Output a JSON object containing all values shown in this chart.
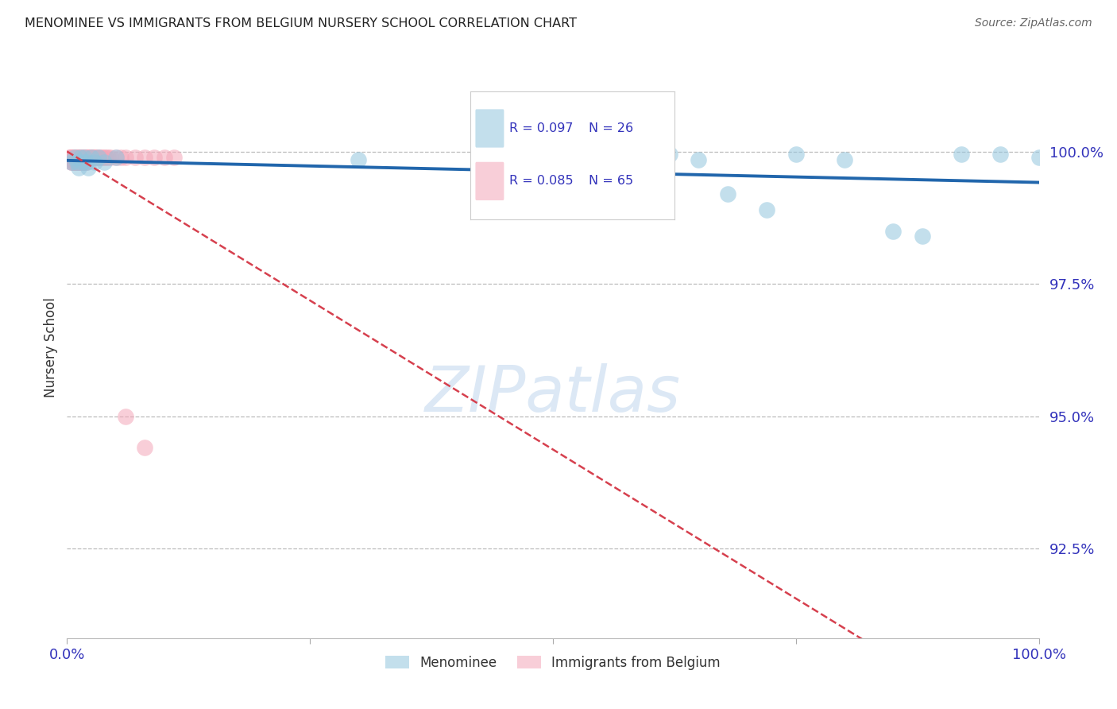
{
  "title": "MENOMINEE VS IMMIGRANTS FROM BELGIUM NURSERY SCHOOL CORRELATION CHART",
  "source": "Source: ZipAtlas.com",
  "ylabel": "Nursery School",
  "legend_blue_r": "0.097",
  "legend_blue_n": "26",
  "legend_pink_r": "0.085",
  "legend_pink_n": "65",
  "ytick_labels": [
    "100.0%",
    "97.5%",
    "95.0%",
    "92.5%"
  ],
  "ytick_values": [
    1.0,
    0.975,
    0.95,
    0.925
  ],
  "xlim": [
    0.0,
    1.0
  ],
  "ylim": [
    0.908,
    1.018
  ],
  "blue_color": "#92c5de",
  "pink_color": "#f4a6b8",
  "blue_line_color": "#2166ac",
  "pink_line_color": "#d6404e",
  "grid_color": "#bbbbbb",
  "title_color": "#222222",
  "axis_label_color": "#333333",
  "tick_label_color": "#3333bb",
  "source_color": "#666666",
  "watermark_color": "#dce8f5",
  "blue_x": [
    0.005,
    0.008,
    0.01,
    0.012,
    0.014,
    0.016,
    0.018,
    0.02,
    0.022,
    0.025,
    0.028,
    0.032,
    0.038,
    0.05,
    0.3,
    0.62,
    0.65,
    0.68,
    0.72,
    0.75,
    0.8,
    0.85,
    0.88,
    0.92,
    0.96,
    1.0
  ],
  "blue_y": [
    0.998,
    0.999,
    0.998,
    0.997,
    0.999,
    0.998,
    0.999,
    0.998,
    0.997,
    0.999,
    0.998,
    0.999,
    0.998,
    0.999,
    0.9985,
    0.9995,
    0.9985,
    0.992,
    0.989,
    0.9995,
    0.9985,
    0.985,
    0.984,
    0.9995,
    0.9995,
    0.999
  ],
  "pink_x": [
    0.002,
    0.003,
    0.004,
    0.005,
    0.005,
    0.006,
    0.006,
    0.007,
    0.007,
    0.008,
    0.008,
    0.009,
    0.009,
    0.01,
    0.01,
    0.011,
    0.011,
    0.012,
    0.012,
    0.013,
    0.013,
    0.014,
    0.014,
    0.015,
    0.015,
    0.016,
    0.016,
    0.017,
    0.017,
    0.018,
    0.018,
    0.019,
    0.019,
    0.02,
    0.02,
    0.021,
    0.022,
    0.023,
    0.024,
    0.025,
    0.026,
    0.027,
    0.028,
    0.029,
    0.03,
    0.032,
    0.034,
    0.036,
    0.038,
    0.04,
    0.042,
    0.045,
    0.05,
    0.055,
    0.06,
    0.07,
    0.08,
    0.09,
    0.1,
    0.11,
    0.005,
    0.01,
    0.012,
    0.06,
    0.08
  ],
  "pink_y": [
    0.999,
    0.999,
    0.999,
    0.999,
    0.998,
    0.999,
    0.998,
    0.999,
    0.998,
    0.999,
    0.998,
    0.999,
    0.998,
    0.999,
    0.998,
    0.999,
    0.998,
    0.999,
    0.998,
    0.999,
    0.998,
    0.999,
    0.998,
    0.999,
    0.998,
    0.999,
    0.998,
    0.999,
    0.998,
    0.999,
    0.998,
    0.999,
    0.998,
    0.999,
    0.998,
    0.999,
    0.999,
    0.999,
    0.999,
    0.999,
    0.999,
    0.999,
    0.999,
    0.999,
    0.999,
    0.999,
    0.999,
    0.999,
    0.999,
    0.999,
    0.999,
    0.999,
    0.999,
    0.999,
    0.999,
    0.999,
    0.999,
    0.999,
    0.999,
    0.999,
    0.998,
    0.998,
    0.998,
    0.95,
    0.944
  ]
}
